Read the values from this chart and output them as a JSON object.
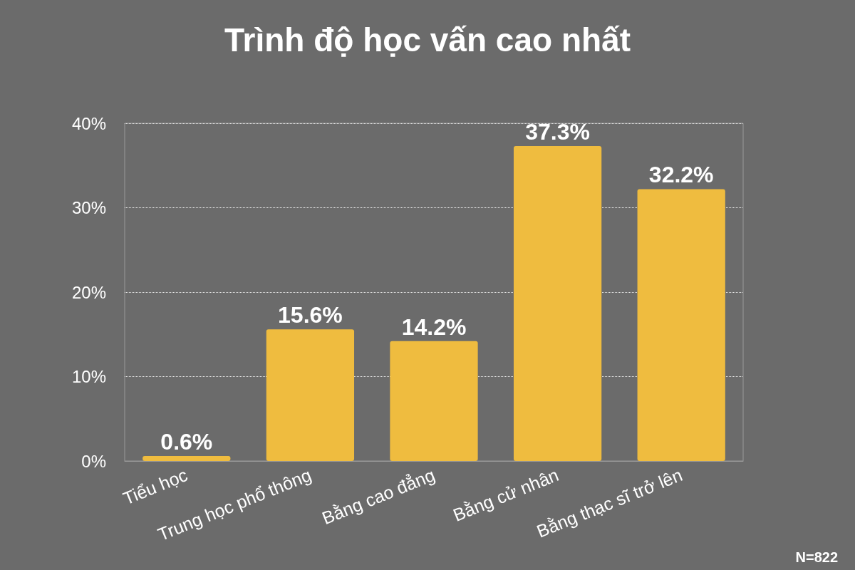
{
  "chart_data": {
    "type": "bar",
    "title": "Trình độ học vấn cao nhất",
    "categories": [
      "Tiểu học",
      "Trung học phổ thông",
      "Bằng cao đẳng",
      "Bằng cử nhân",
      "Bằng thạc sĩ trở lên"
    ],
    "values": [
      0.6,
      15.6,
      14.2,
      37.3,
      32.2
    ],
    "value_labels": [
      "0.6%",
      "15.6%",
      "14.2%",
      "37.3%",
      "32.2%"
    ],
    "color": "#efbc3f",
    "ylim": [
      0,
      40
    ],
    "yticks": [
      {
        "value": 0,
        "label": "0%"
      },
      {
        "value": 10,
        "label": "10%"
      },
      {
        "value": 20,
        "label": "20%"
      },
      {
        "value": 30,
        "label": "30%"
      },
      {
        "value": 40,
        "label": "40%"
      }
    ],
    "grid": "y",
    "annotations": [
      "N=822"
    ]
  }
}
